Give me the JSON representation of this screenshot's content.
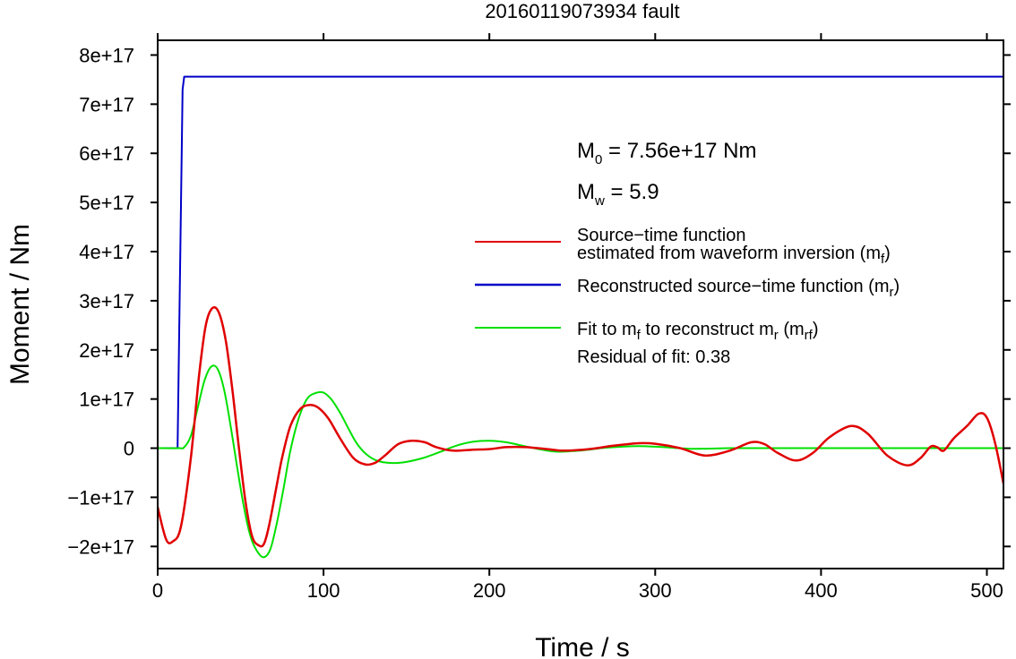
{
  "chart_data": {
    "type": "line",
    "title": "20160119073934 fault",
    "xlabel": "Time / s",
    "ylabel": "Moment / Nm",
    "xlim": [
      0,
      510
    ],
    "ylim": [
      -2.45e+17,
      8.3e+17
    ],
    "x_ticks": [
      0,
      100,
      200,
      300,
      400,
      500
    ],
    "x_tick_labels": [
      "0",
      "100",
      "200",
      "300",
      "400",
      "500"
    ],
    "y_ticks": [
      -2e+17,
      -1e+17,
      0,
      1e+17,
      2e+17,
      3e+17,
      4e+17,
      5e+17,
      6e+17,
      7e+17,
      8e+17
    ],
    "y_tick_labels": [
      "−2e+17",
      "−1e+17",
      "0",
      "1e+17",
      "2e+17",
      "3e+17",
      "4e+17",
      "5e+17",
      "6e+17",
      "7e+17",
      "8e+17"
    ],
    "grid": false,
    "annotations": {
      "m0_symbol": "M",
      "m0_sub": "0",
      "m0_value": " = 7.56e+17 Nm",
      "mw_symbol": "M",
      "mw_sub": "w",
      "mw_value": " = 5.9",
      "residual": "Residual of fit: 0.38"
    },
    "legend": {
      "position": "top-right",
      "entries": [
        {
          "line1": "Source−time function",
          "line2_text": "estimated from waveform inversion (m",
          "line2_sub": "f",
          "line2_close": ")",
          "color": "#e00000"
        },
        {
          "text": "Reconstructed source−time function (m",
          "sub": "r",
          "close": ")",
          "color": "#0000c8"
        },
        {
          "text": "Fit to m",
          "sub1": "f",
          "text2": " to reconstruct m",
          "sub2": "r",
          "text3": " (m",
          "sub3": "rf",
          "close": ")",
          "color": "#00e000"
        }
      ]
    },
    "series": [
      {
        "name": "Source−time function estimated from waveform inversion (mf)",
        "color": "#e00000",
        "x": [
          0,
          5,
          9,
          14,
          20,
          25,
          29,
          33,
          37,
          41,
          45,
          49,
          53,
          57,
          61,
          64,
          67,
          71,
          75,
          80,
          86,
          92,
          97,
          103,
          110,
          118,
          125,
          131,
          137,
          145,
          153,
          161,
          168,
          178,
          190,
          200,
          210,
          222,
          235,
          245,
          260,
          275,
          290,
          300,
          315,
          330,
          345,
          358,
          366,
          374,
          385,
          395,
          405,
          418,
          428,
          440,
          452,
          460,
          466,
          470,
          474,
          480,
          488,
          495,
          500,
          505,
          510
        ],
        "y": [
          -1.2e+17,
          -1.85e+17,
          -1.9e+17,
          -1.6e+17,
          -2e+16,
          1.5e+17,
          2.5e+17,
          2.85e+17,
          2.75e+17,
          2.2e+17,
          1.2e+17,
          0,
          -1.1e+17,
          -1.8e+17,
          -1.98e+17,
          -1.95e+17,
          -1.6e+17,
          -9e+16,
          -2e+16,
          4.5e+16,
          8e+16,
          8.8e+16,
          8.2e+16,
          6e+16,
          2e+16,
          -2e+16,
          -3.3e+16,
          -3e+16,
          -1.5e+16,
          8000000000000000.0,
          1.5e+16,
          1.2e+16,
          2000000000000000.0,
          -5000000000000000.0,
          -3000000000000000.0,
          -2000000000000000.0,
          2000000000000000.0,
          2000000000000000.0,
          -2000000000000000.0,
          -5000000000000000.0,
          -2000000000000000.0,
          5000000000000000.0,
          1e+16,
          9000000000000000.0,
          0,
          -1.5e+16,
          -5000000000000000.0,
          1.2e+16,
          8000000000000000.0,
          -1e+16,
          -2.5e+16,
          -1e+16,
          2.2e+16,
          4.5e+16,
          3e+16,
          -1.5e+16,
          -3.5e+16,
          -2e+16,
          3000000000000000.0,
          2000000000000000.0,
          -5000000000000000.0,
          2e+16,
          4.5e+16,
          7e+16,
          6.2e+16,
          1e+16,
          -7.2e+16
        ]
      },
      {
        "name": "Reconstructed source−time function (mr)",
        "color": "#0000c8",
        "x": [
          0,
          12,
          15,
          16,
          510
        ],
        "y": [
          0,
          0,
          7.3e+17,
          7.56e+17,
          7.56e+17
        ]
      },
      {
        "name": "Fit to mf to reconstruct mr (mrf)",
        "color": "#00e000",
        "x": [
          0,
          13,
          16,
          20,
          24,
          28,
          32,
          36,
          40,
          44,
          48,
          52,
          56,
          60,
          64,
          68,
          72,
          76,
          80,
          85,
          90,
          95,
          100,
          105,
          110,
          115,
          120,
          125,
          130,
          135,
          140,
          145,
          150,
          160,
          170,
          180,
          190,
          200,
          210,
          220,
          230,
          240,
          250,
          260,
          270,
          280,
          290,
          300,
          310,
          320,
          330,
          345,
          360,
          380,
          400,
          450,
          510
        ],
        "y": [
          0,
          0,
          2000000000000000.0,
          2.5e+16,
          8e+16,
          1.35e+17,
          1.65e+17,
          1.62e+17,
          1.2e+17,
          4.5e+16,
          -4e+16,
          -1.2e+17,
          -1.8e+17,
          -2.1e+17,
          -2.22e+17,
          -2.05e+17,
          -1.5e+17,
          -8e+16,
          -5000000000000000.0,
          6e+16,
          1e+17,
          1.12e+17,
          1.13e+17,
          9.8e+16,
          7.2e+16,
          4e+16,
          1e+16,
          -1e+16,
          -2.2e+16,
          -2.8e+16,
          -3e+16,
          -3e+16,
          -2.8e+16,
          -2e+16,
          -8000000000000000.0,
          5000000000000000.0,
          1.3e+16,
          1.5e+16,
          1.2e+16,
          5000000000000000.0,
          -2000000000000000.0,
          -7000000000000000.0,
          -6000000000000000.0,
          -3000000000000000.0,
          1000000000000000.0,
          3000000000000000.0,
          4000000000000000.0,
          3000000000000000.0,
          1000000000000000.0,
          -1000000000000000.0,
          -1000000000000000.0,
          0,
          0,
          0,
          0,
          0,
          0
        ]
      }
    ]
  }
}
